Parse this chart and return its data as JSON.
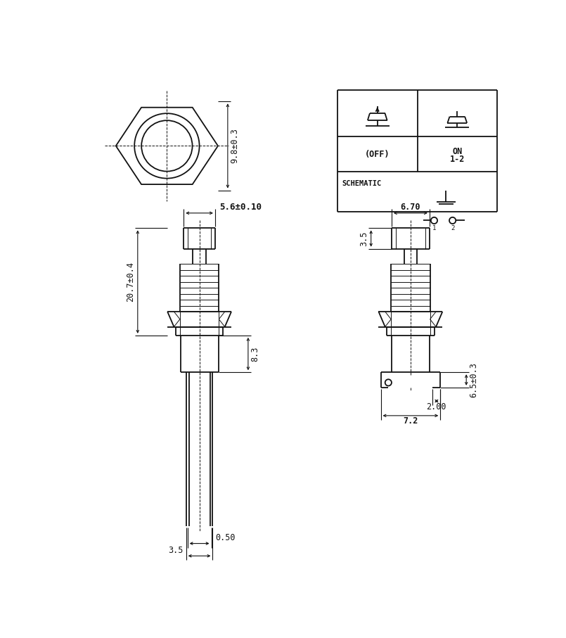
{
  "bg_color": "#ffffff",
  "line_color": "#111111",
  "lw": 1.3,
  "tlw": 0.7,
  "dlw": 0.8,
  "fs": 8.5,
  "dim_98": "9.8±0.3",
  "dim_56": "5.6±0.10",
  "dim_207": "20.7±0.4",
  "dim_83": "8.3",
  "dim_05": "0.50",
  "dim_35_bot": "3.5",
  "dim_670": "6.70",
  "dim_35_top": "3.5",
  "dim_65": "6.5±0.3",
  "dim_200": "2.00",
  "dim_72": "7.2"
}
